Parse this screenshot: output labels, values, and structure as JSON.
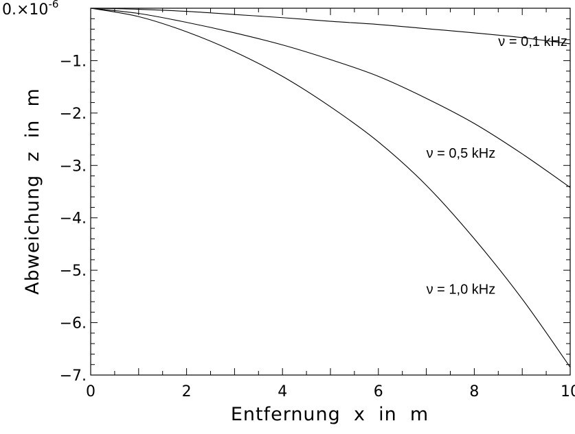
{
  "chart_data": {
    "type": "line",
    "xlabel": "Entfernung  x  in  m",
    "ylabel": "Abweichung  z  in  m",
    "y_multiplier_label": "×10",
    "y_multiplier_exponent": "-6",
    "xlim": [
      0,
      10
    ],
    "ylim": [
      -7,
      0
    ],
    "x_ticks": [
      "0",
      "2",
      "4",
      "6",
      "8",
      "10"
    ],
    "y_ticks": [
      "0.",
      "−1.",
      "−2.",
      "−3.",
      "−4.",
      "−5.",
      "−6.",
      "−7."
    ],
    "x_tick_values": [
      0,
      2,
      4,
      6,
      8,
      10
    ],
    "y_tick_values": [
      0,
      -1,
      -2,
      -3,
      -4,
      -5,
      -6,
      -7
    ],
    "grid": false,
    "series": [
      {
        "name": "ν = 0,1 kHz",
        "x": [
          0,
          1,
          2,
          3,
          4,
          5,
          6,
          7,
          8,
          9,
          10
        ],
        "y": [
          0,
          -0.02,
          -0.06,
          -0.12,
          -0.18,
          -0.25,
          -0.31,
          -0.39,
          -0.47,
          -0.56,
          -0.68
        ],
        "label_anchor": [
          8.5,
          -0.72
        ]
      },
      {
        "name": "ν = 0,5 kHz",
        "x": [
          0,
          1,
          2,
          3,
          4,
          5,
          6,
          7,
          8,
          9,
          10
        ],
        "y": [
          0,
          -0.1,
          -0.27,
          -0.47,
          -0.7,
          -0.98,
          -1.3,
          -1.72,
          -2.2,
          -2.78,
          -3.42
        ],
        "label_anchor": [
          7,
          -2.85
        ]
      },
      {
        "name": "ν = 1,0 kHz",
        "x": [
          0,
          1,
          2,
          3,
          4,
          5,
          6,
          7,
          8,
          9,
          10
        ],
        "y": [
          0,
          -0.16,
          -0.45,
          -0.83,
          -1.3,
          -1.88,
          -2.55,
          -3.38,
          -4.4,
          -5.55,
          -6.85
        ],
        "label_anchor": [
          7,
          -5.45
        ]
      }
    ]
  }
}
